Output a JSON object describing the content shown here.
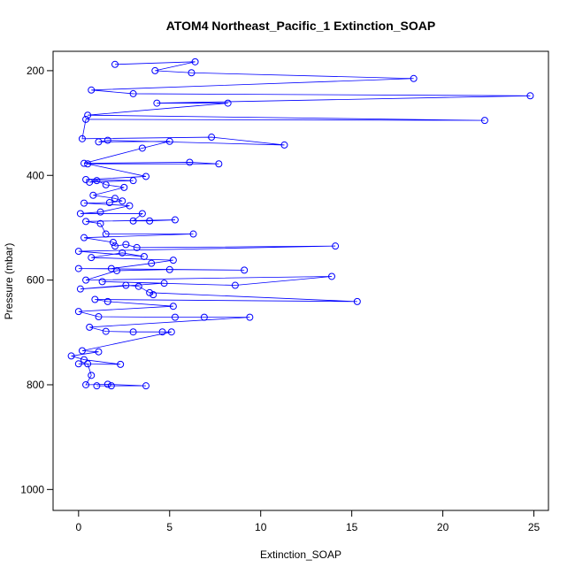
{
  "chart_data": {
    "type": "line",
    "title": "ATOM4 Northeast_Pacific_1 Extinction_SOAP",
    "x_label": "Extinction_SOAP",
    "y_label": "Pressure (mbar)",
    "color": "#0000ff",
    "markers": true,
    "x": [
      2.0,
      6.4,
      4.2,
      6.2,
      18.4,
      0.7,
      3.0,
      24.8,
      4.3,
      8.2,
      0.5,
      22.3,
      0.4,
      0.2,
      7.3,
      11.3,
      1.6,
      1.1,
      5.0,
      3.5,
      0.3,
      6.1,
      7.7,
      0.5,
      3.7,
      0.4,
      3.0,
      0.6,
      1.0,
      1.5,
      2.5,
      0.8,
      2.0,
      2.4,
      1.7,
      0.3,
      2.8,
      1.2,
      0.1,
      3.5,
      3.0,
      3.9,
      5.3,
      0.4,
      1.2,
      1.5,
      6.3,
      0.3,
      1.9,
      2.0,
      2.6,
      3.2,
      14.1,
      0.0,
      3.6,
      2.4,
      0.7,
      5.2,
      4.0,
      1.8,
      0.0,
      9.1,
      5.0,
      2.1,
      0.4,
      13.9,
      8.6,
      1.3,
      4.7,
      0.1,
      2.6,
      3.3,
      4.1,
      3.9,
      15.3,
      0.9,
      1.6,
      5.2,
      0.0,
      1.1,
      5.3,
      6.9,
      9.4,
      0.6,
      1.5,
      3.0,
      4.6,
      5.1,
      0.2,
      1.1,
      -0.4,
      0.3,
      2.3,
      0.0,
      0.5,
      0.7,
      0.4,
      1.6,
      3.7,
      1.0,
      1.8
    ],
    "values": [
      188,
      183,
      200,
      204,
      215,
      237,
      244,
      248,
      262,
      262,
      285,
      295,
      293,
      330,
      327,
      342,
      333,
      336,
      335,
      348,
      377,
      375,
      378,
      378,
      402,
      408,
      410,
      413,
      410,
      418,
      423,
      438,
      444,
      449,
      452,
      453,
      458,
      470,
      473,
      473,
      487,
      487,
      485,
      488,
      492,
      512,
      512,
      519,
      528,
      535,
      532,
      538,
      535,
      545,
      555,
      548,
      557,
      562,
      568,
      578,
      578,
      581,
      580,
      582,
      600,
      593,
      610,
      603,
      606,
      617,
      610,
      612,
      628,
      624,
      641,
      637,
      641,
      650,
      660,
      670,
      671,
      671,
      671,
      690,
      698,
      699,
      699,
      699,
      735,
      737,
      745,
      752,
      761,
      760,
      760,
      782,
      800,
      799,
      802,
      802,
      802
    ],
    "xlim": [
      -1.4,
      25.8
    ],
    "xticks": [
      0,
      5,
      10,
      15,
      20,
      25
    ],
    "ylim": [
      1040,
      163
    ],
    "yticks": [
      200,
      400,
      600,
      800,
      1000
    ]
  }
}
